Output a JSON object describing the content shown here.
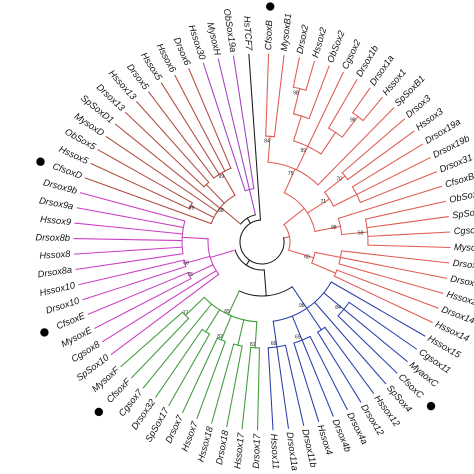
{
  "colors": {
    "root": "#1a1a1a",
    "soxB": "#e05a52",
    "soxC": "#2b3fa8",
    "soxF": "#3f9a3a",
    "soxE": "#cc3fc4",
    "soxD": "#b04a3e",
    "soxH": "#a040c0",
    "marker": "#000000"
  },
  "bootstrap_values": [
    "84",
    "98",
    "75",
    "99",
    "98",
    "70",
    "71",
    "98",
    "59",
    "60",
    "84",
    "98",
    "65",
    "68",
    "81",
    "82",
    "65",
    "77",
    "75",
    "69",
    "99",
    "88",
    "99"
  ],
  "tree": {
    "children": [
      {
        "color": "soxB",
        "children": [
          {
            "children": [
              {
                "children": [
                  {
                    "children": [
                      {
                        "name": "CfsoxB",
                        "marker": true
                      },
                      {
                        "name": "MysoxB1"
                      }
                    ]
                  },
                  {
                    "children": [
                      {
                        "children": [
                          {
                            "children": [
                              {
                                "name": "Drsox2"
                              },
                              {
                                "name": "Hssox2"
                              }
                            ]
                          },
                          {
                            "name": "ObSox2"
                          }
                        ]
                      },
                      {
                        "name": "Cgsox2"
                      },
                      {
                        "children": [
                          {
                            "name": "Drsox1b"
                          },
                          {
                            "children": [
                              {
                                "name": "Drsox1a"
                              },
                              {
                                "name": "Hssox1"
                              }
                            ]
                          }
                        ]
                      }
                    ]
                  },
                  {
                    "name": "SpSoxB1"
                  }
                ]
              },
              {
                "children": [
                  {
                    "children": [
                      {
                        "name": "Drsox3"
                      },
                      {
                        "name": "Hssox3"
                      }
                    ]
                  },
                  {
                    "children": [
                      {
                        "name": "Drsox19a"
                      },
                      {
                        "name": "Drsox19b"
                      },
                      {
                        "name": "Drsox31"
                      }
                    ]
                  }
                ]
              },
              {
                "children": [
                  {
                    "name": "CfsoxB2",
                    "marker": true
                  },
                  {
                    "children": [
                      {
                        "name": "ObSox14"
                      },
                      {
                        "name": "SpSoxB2"
                      },
                      {
                        "name": "Cgsox14"
                      },
                      {
                        "name": "MysoxB2"
                      }
                    ]
                  }
                ]
              }
            ]
          },
          {
            "children": [
              {
                "children": [
                  {
                    "name": "Drsox21a"
                  },
                  {
                    "name": "Drsox21b"
                  },
                  {
                    "name": "Hssox21"
                  }
                ]
              },
              {
                "children": [
                  {
                    "name": "Drsox14"
                  },
                  {
                    "name": "Hssox14"
                  }
                ]
              }
            ]
          }
        ]
      },
      {
        "children": [
          {
            "children": [
              {
                "color": "soxC",
                "children": [
                  {
                    "name": "Hssox15"
                  },
                  {
                    "children": [
                      {
                        "name": "Cgsox11"
                      },
                      {
                        "name": "MyaoxC"
                      },
                      {
                        "name": "CfsoxC",
                        "marker": true
                      }
                    ]
                  },
                  {
                    "name": "SpSox4"
                  },
                  {
                    "children": [
                      {
                        "name": "Hssox12"
                      },
                      {
                        "name": "Drsox12"
                      }
                    ]
                  },
                  {
                    "children": [
                      {
                        "name": "Drsox4a"
                      },
                      {
                        "name": "Drsox4b"
                      },
                      {
                        "name": "Hssox4"
                      }
                    ]
                  },
                  {
                    "children": [
                      {
                        "name": "Drsox11b"
                      },
                      {
                        "name": "Drsox11a"
                      },
                      {
                        "name": "Hssox11"
                      }
                    ]
                  }
                ]
              },
              {
                "color": "soxF",
                "children": [
                  {
                    "children": [
                      {
                        "name": "Drsox17"
                      },
                      {
                        "name": "Hssox17"
                      }
                    ]
                  },
                  {
                    "children": [
                      {
                        "name": "Drsox18"
                      },
                      {
                        "name": "Hssox18"
                      }
                    ]
                  },
                  {
                    "children": [
                      {
                        "name": "Hssox7"
                      },
                      {
                        "name": "Drsox7"
                      }
                    ]
                  },
                  {
                    "children": [
                      {
                        "name": "SpSox17"
                      },
                      {
                        "name": "Drsox32"
                      }
                    ]
                  },
                  {
                    "name": "Cgsox7"
                  },
                  {
                    "children": [
                      {
                        "name": "CfsoxF",
                        "marker": true
                      },
                      {
                        "name": "MysoxF"
                      }
                    ]
                  }
                ]
              }
            ]
          },
          {
            "color": "soxE",
            "children": [
              {
                "name": "SpSox10"
              },
              {
                "name": "Cgsox8"
              },
              {
                "children": [
                  {
                    "name": "MysoxE"
                  },
                  {
                    "name": "CfsoxE",
                    "marker": true
                  }
                ]
              },
              {
                "children": [
                  {
                    "name": "Drsox10"
                  },
                  {
                    "name": "Hssox10"
                  }
                ]
              },
              {
                "children": [
                  {
                    "name": "Drsox8a"
                  },
                  {
                    "name": "Hssox8"
                  },
                  {
                    "name": "Drsox8b"
                  },
                  {
                    "name": "Hssox9"
                  },
                  {
                    "name": "Drsox9a"
                  },
                  {
                    "name": "Drsox9b"
                  }
                ]
              }
            ]
          }
        ]
      },
      {
        "children": [
          {
            "color": "soxD",
            "children": [
              {
                "name": "CfsoxD",
                "marker": true
              },
              {
                "children": [
                  {
                    "name": "Hssox5"
                  },
                  {
                    "name": "ObSox5"
                  }
                ]
              },
              {
                "name": "MysoxD"
              },
              {
                "name": "SpSoxD1"
              },
              {
                "children": [
                  {
                    "name": "Drsox13"
                  },
                  {
                    "name": "Hssox13"
                  }
                ]
              },
              {
                "children": [
                  {
                    "name": "Drsox5"
                  },
                  {
                    "name": "Hssox5"
                  },
                  {
                    "name": "Hssox6"
                  },
                  {
                    "name": "Drsox6"
                  }
                ]
              }
            ]
          },
          {
            "color": "soxH",
            "children": [
              {
                "name": "Hssox30"
              },
              {
                "name": "MysoxH"
              },
              {
                "name": "ObSox19a"
              }
            ]
          }
        ]
      },
      {
        "name": "HsTCF7",
        "color": "root"
      }
    ]
  }
}
